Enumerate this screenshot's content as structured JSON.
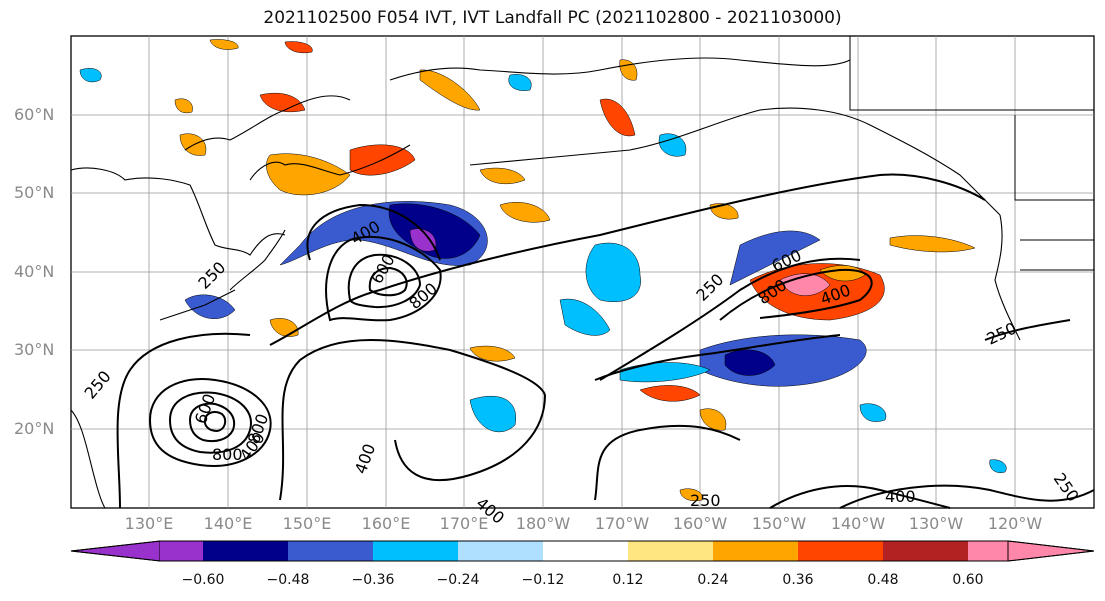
{
  "title": "2021102500 F054 IVT, IVT Landfall PC (2021102800 - 2021103000)",
  "lat_labels": [
    "60°N",
    "50°N",
    "40°N",
    "30°N",
    "20°N"
  ],
  "lon_labels": [
    "130°E",
    "140°E",
    "150°E",
    "160°E",
    "170°E",
    "180°W",
    "170°W",
    "160°W",
    "150°W",
    "140°W",
    "130°W",
    "120°W"
  ],
  "colorbar": {
    "ticks": [
      "−0.60",
      "−0.48",
      "−0.36",
      "−0.24",
      "−0.12",
      "0.12",
      "0.24",
      "0.36",
      "0.48",
      "0.60"
    ],
    "colors": [
      "#9932cc",
      "#00008b",
      "#3a5bd0",
      "#00bfff",
      "#b0e0ff",
      "#ffffff",
      "#ffe680",
      "#ffa500",
      "#ff4500",
      "#b22222",
      "#ff88aa"
    ]
  },
  "contour_labels": [
    "250",
    "400",
    "600",
    "800",
    "250",
    "600",
    "800",
    "400",
    "250",
    "250",
    "800",
    "400",
    "400",
    "250",
    "400",
    "250",
    "400"
  ]
}
